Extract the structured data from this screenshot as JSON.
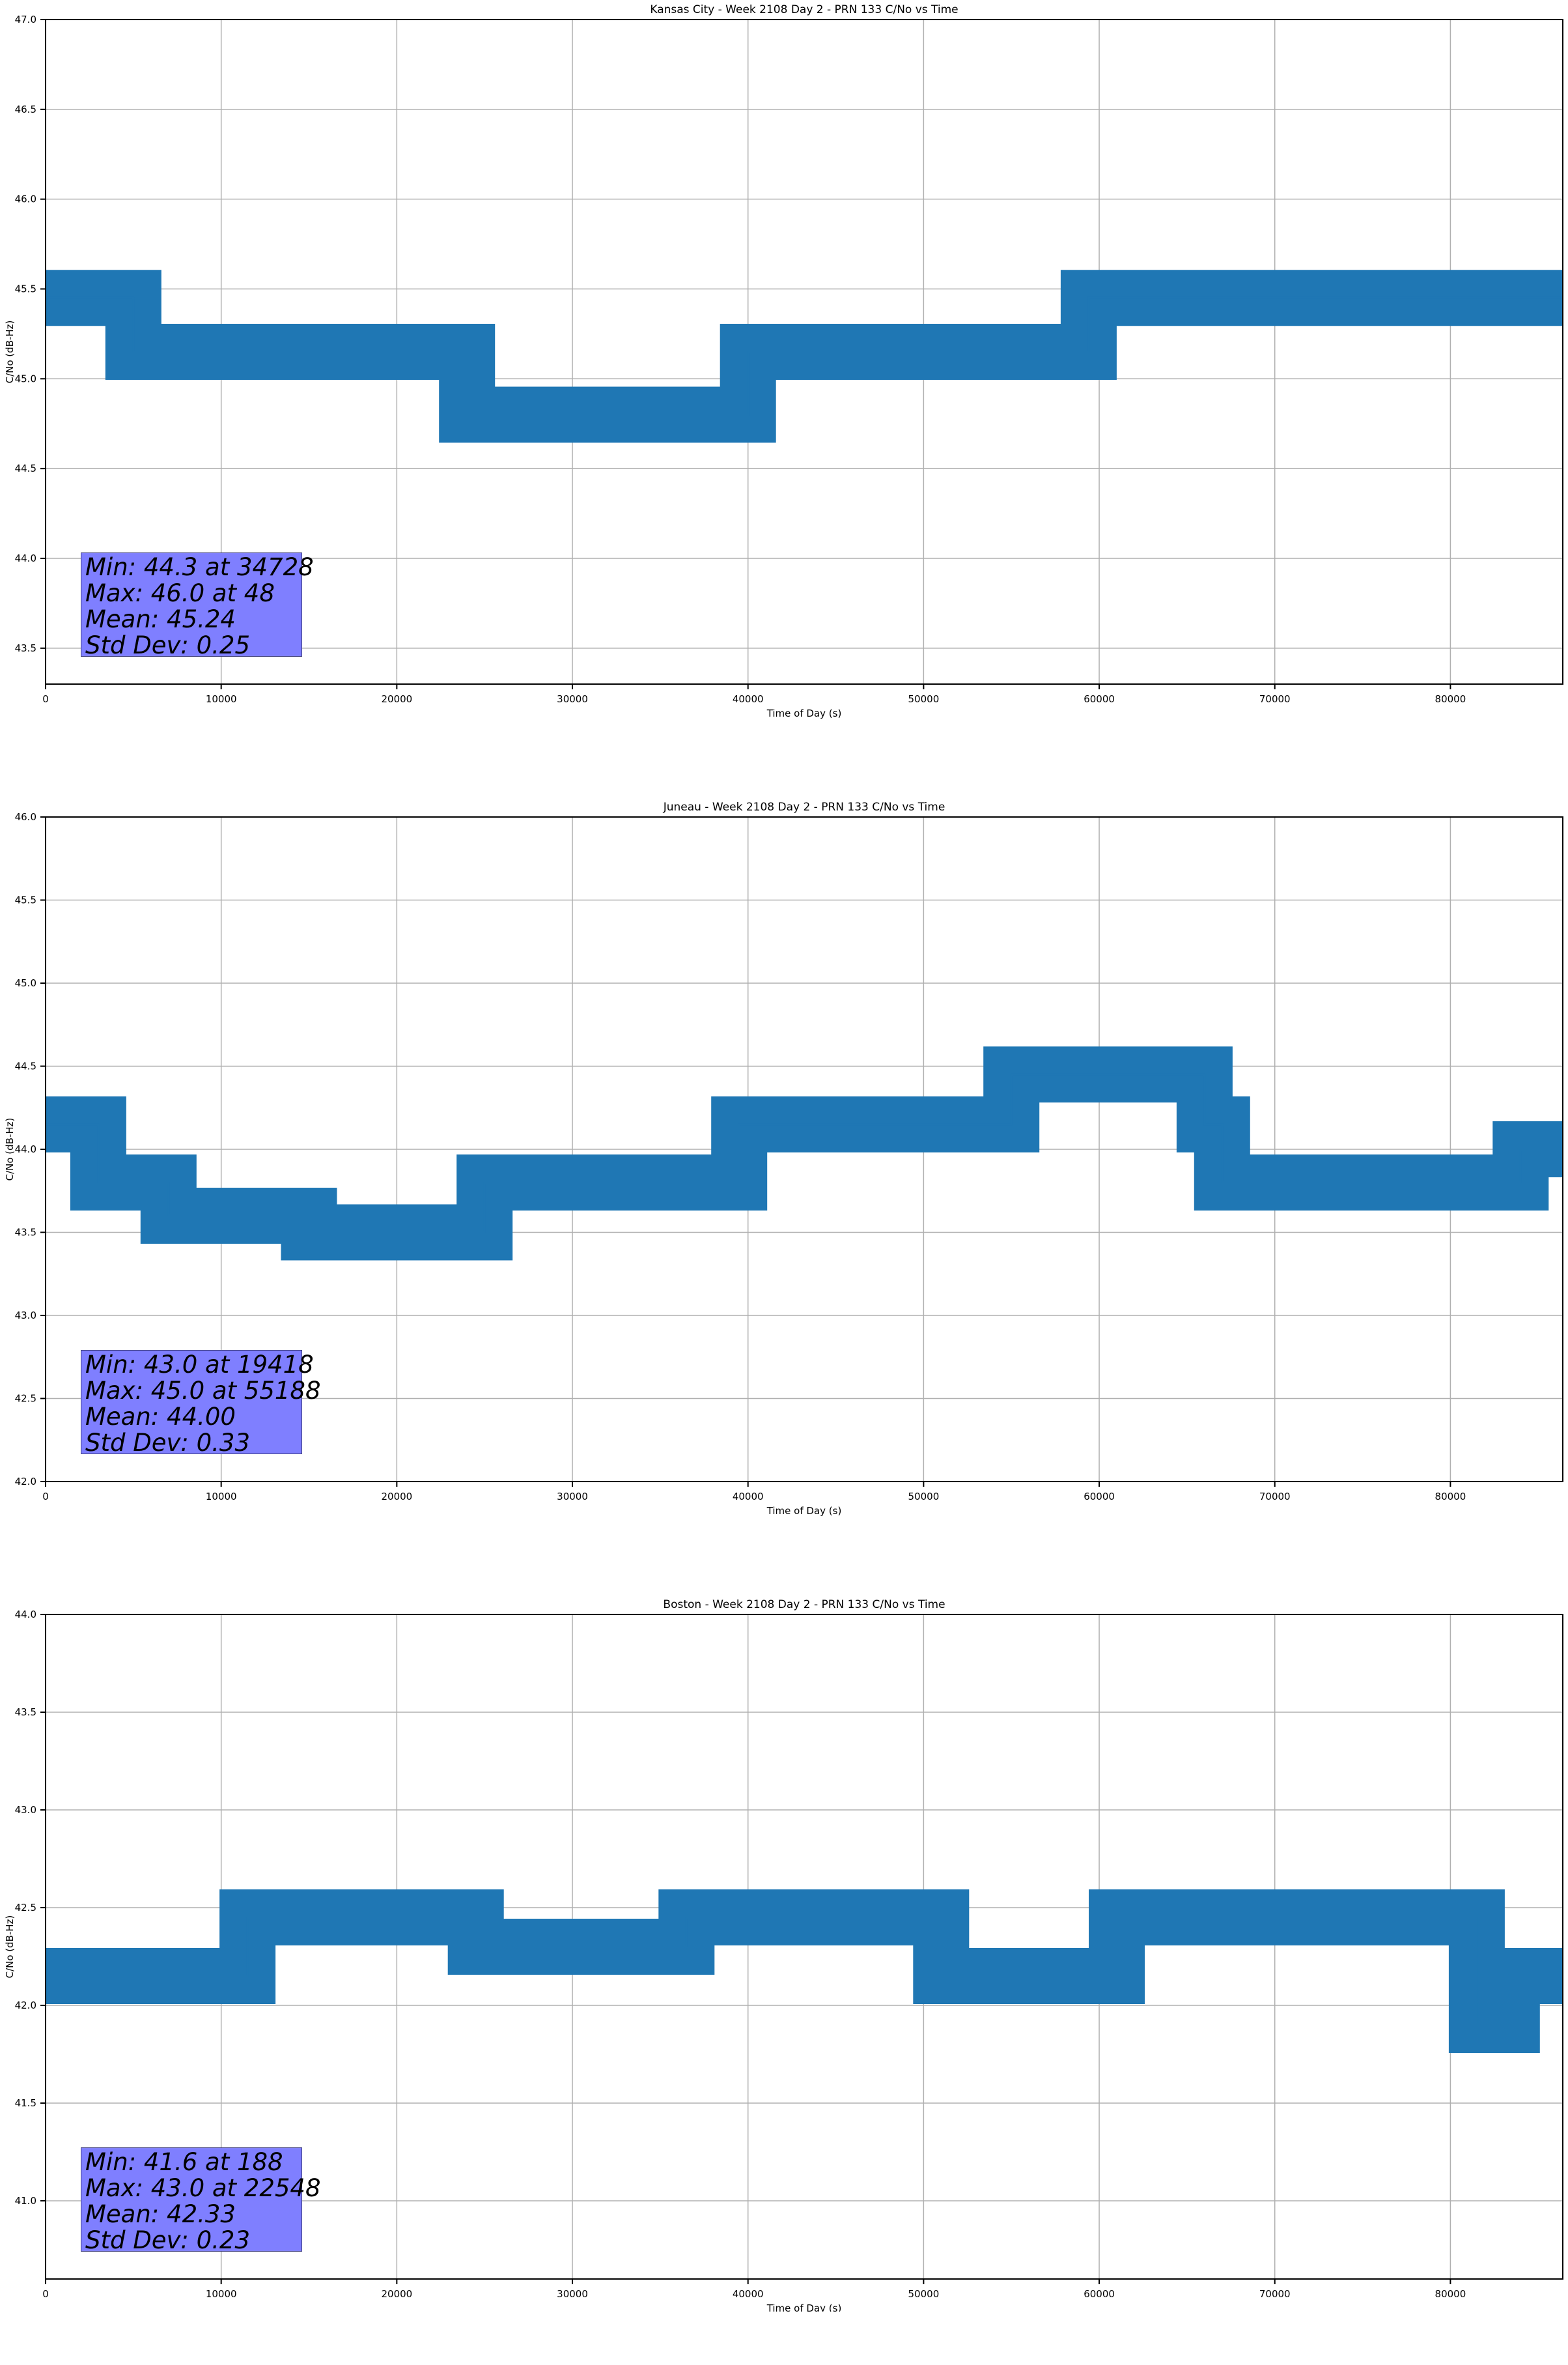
{
  "chart_data": [
    {
      "type": "line",
      "title": "Kansas City - Week 2108 Day 2 - PRN 133 C/No vs Time",
      "xlabel": "Time of Day (s)",
      "ylabel": "C/No (dB-Hz)",
      "xlim": [
        0,
        86400
      ],
      "ylim": [
        43.3,
        47.0
      ],
      "xticks": [
        0,
        10000,
        20000,
        30000,
        40000,
        50000,
        60000,
        70000,
        80000
      ],
      "yticks": [
        43.5,
        44.0,
        44.5,
        45.0,
        45.5,
        46.0,
        46.5,
        47.0
      ],
      "grid": true,
      "color": "#1f77b4",
      "stats": {
        "min": "Min: 44.3 at 34728",
        "max": "Max: 46.0 at 48",
        "mean": "Mean: 45.24",
        "std": "Std Dev: 0.25"
      },
      "series": [
        {
          "name": "C/No",
          "x": [
            0,
            5000,
            5000,
            24000,
            24000,
            40000,
            40000,
            59400,
            59400,
            86400
          ],
          "y": [
            45.45,
            45.45,
            45.15,
            45.15,
            44.8,
            44.8,
            45.15,
            45.15,
            45.45,
            45.45
          ]
        }
      ]
    },
    {
      "type": "line",
      "title": "Juneau - Week 2108 Day 2 - PRN 133 C/No vs Time",
      "xlabel": "Time of Day (s)",
      "ylabel": "C/No (dB-Hz)",
      "xlim": [
        0,
        86400
      ],
      "ylim": [
        42.0,
        46.0
      ],
      "xticks": [
        0,
        10000,
        20000,
        30000,
        40000,
        50000,
        60000,
        70000,
        80000
      ],
      "yticks": [
        42.0,
        42.5,
        43.0,
        43.5,
        44.0,
        44.5,
        45.0,
        45.5,
        46.0
      ],
      "grid": true,
      "color": "#1f77b4",
      "stats": {
        "min": "Min: 43.0 at 19418",
        "max": "Max: 45.0 at 55188",
        "mean": "Mean: 44.00",
        "std": "Std Dev: 0.33"
      },
      "series": [
        {
          "name": "C/No",
          "x": [
            0,
            3000,
            3000,
            7000,
            7000,
            15000,
            15000,
            25000,
            25000,
            39500,
            39500,
            55000,
            55000,
            66000,
            66000,
            67000,
            67000,
            84000,
            84000,
            86400
          ],
          "y": [
            44.15,
            44.15,
            43.8,
            43.8,
            43.6,
            43.6,
            43.5,
            43.5,
            43.8,
            43.8,
            44.15,
            44.15,
            44.45,
            44.45,
            44.15,
            44.15,
            43.8,
            43.8,
            44.0,
            44.0
          ]
        }
      ]
    },
    {
      "type": "line",
      "title": "Boston - Week 2108 Day 2 - PRN 133 C/No vs Time",
      "xlabel": "Time of Day (s)",
      "ylabel": "C/No (dB-Hz)",
      "xlim": [
        0,
        86400
      ],
      "ylim": [
        40.6,
        44.0
      ],
      "xticks": [
        0,
        10000,
        20000,
        30000,
        40000,
        50000,
        60000,
        70000,
        80000
      ],
      "yticks": [
        41.0,
        41.5,
        42.0,
        42.5,
        43.0,
        43.5,
        44.0
      ],
      "grid": true,
      "color": "#1f77b4",
      "stats": {
        "min": "Min: 41.6 at 188",
        "max": "Max: 43.0 at 22548",
        "mean": "Mean: 42.33",
        "std": "Std Dev: 0.23"
      },
      "series": [
        {
          "name": "C/No",
          "x": [
            0,
            11500,
            11500,
            24500,
            24500,
            36500,
            36500,
            51000,
            51000,
            61000,
            61000,
            81500,
            81500,
            83500,
            83500,
            86400
          ],
          "y": [
            42.15,
            42.15,
            42.45,
            42.45,
            42.3,
            42.3,
            42.45,
            42.45,
            42.15,
            42.15,
            42.45,
            42.45,
            41.9,
            41.9,
            42.15,
            42.15
          ]
        }
      ]
    }
  ]
}
